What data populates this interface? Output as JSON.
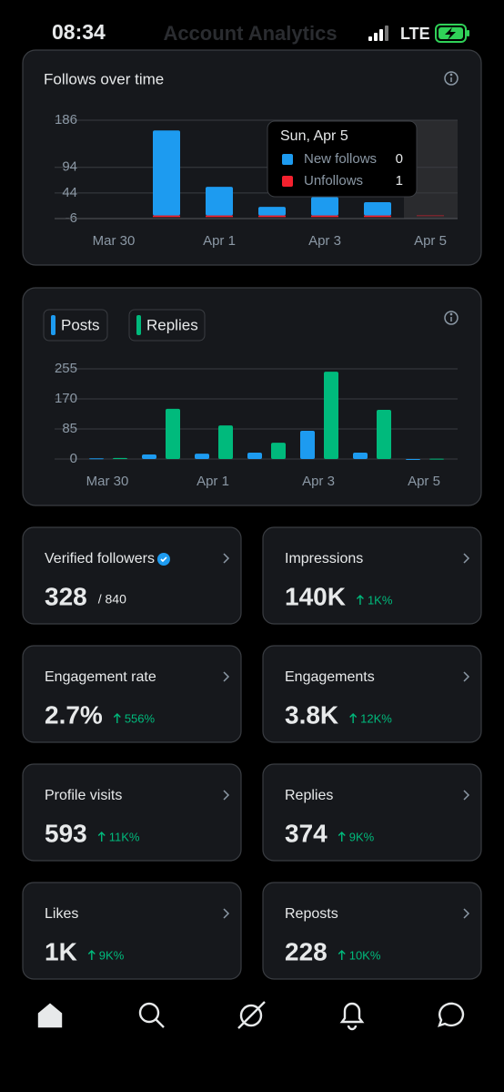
{
  "status_bar": {
    "time": "08:34",
    "network": "LTE"
  },
  "header": {
    "title": "Account Analytics"
  },
  "chart_data": [
    {
      "type": "bar",
      "title": "Follows over time",
      "categories": [
        "Mar 30",
        null,
        "Apr 1",
        null,
        "Apr 3",
        null,
        "Apr 5"
      ],
      "series": [
        {
          "name": "New follows",
          "color": "#1d9bf0",
          "values": [
            0,
            166,
            56,
            17,
            36,
            26,
            0
          ]
        },
        {
          "name": "Unfollows",
          "color": "#f4212e",
          "values": [
            0,
            3,
            3,
            3,
            3,
            3,
            1
          ]
        }
      ],
      "ylim": [
        -6,
        186
      ],
      "yticks": [
        -6,
        44,
        94,
        186
      ],
      "grid": true,
      "tooltip": {
        "title": "Sun, Apr 5"
      }
    },
    {
      "type": "grouped-bar",
      "categories": [
        "Mar 30",
        null,
        "Apr 1",
        null,
        "Apr 3",
        null,
        "Apr 5"
      ],
      "series": [
        {
          "name": "Posts",
          "color": "#1d9bf0",
          "values": [
            2,
            13,
            15,
            18,
            80,
            18,
            0
          ]
        },
        {
          "name": "Replies",
          "color": "#00ba7c",
          "values": [
            3,
            142,
            95,
            46,
            247,
            139,
            1
          ]
        }
      ],
      "ylim": [
        0,
        255
      ],
      "yticks": [
        0,
        85,
        170,
        255
      ],
      "grid": true
    }
  ],
  "stats": [
    {
      "label": "Verified followers",
      "value": "328",
      "total": "/ 840"
    },
    {
      "label": "Impressions",
      "value": "140K",
      "delta": "1K%"
    },
    {
      "label": "Engagement rate",
      "value": "2.7%",
      "delta": "556%"
    },
    {
      "label": "Engagements",
      "value": "3.8K",
      "delta": "12K%"
    },
    {
      "label": "Profile visits",
      "value": "593",
      "delta": "11K%"
    },
    {
      "label": "Replies",
      "value": "374",
      "delta": "9K%"
    },
    {
      "label": "Likes",
      "value": "1K",
      "delta": "9K%"
    },
    {
      "label": "Reposts",
      "value": "228",
      "delta": "10K%"
    }
  ]
}
